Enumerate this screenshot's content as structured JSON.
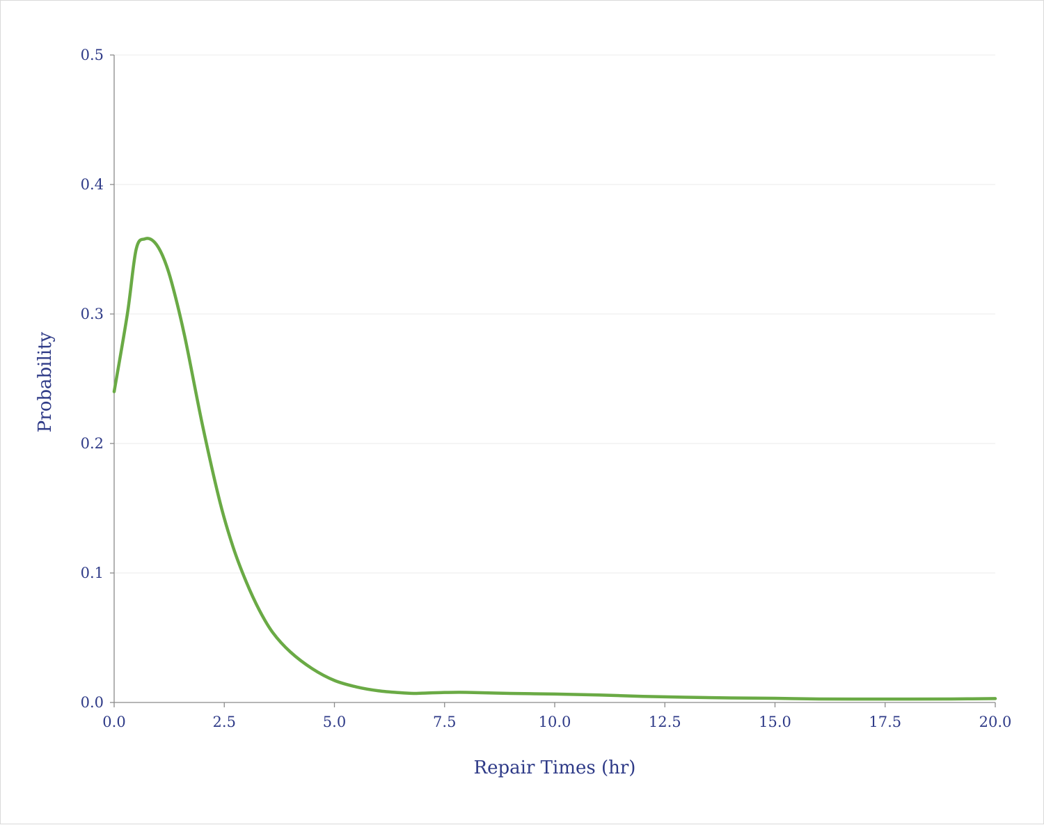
{
  "chart_data": {
    "type": "line",
    "title": "",
    "xlabel": "Repair Times (hr)",
    "ylabel": "Probability",
    "xlim": [
      0,
      20
    ],
    "ylim": [
      0,
      0.5
    ],
    "grid": "horizontal",
    "x_ticks": [
      "0.0",
      "2.5",
      "5.0",
      "7.5",
      "10.0",
      "12.5",
      "15.0",
      "17.5",
      "20.0"
    ],
    "y_ticks": [
      "0.0",
      "0.1",
      "0.2",
      "0.3",
      "0.4",
      "0.5"
    ],
    "line_color": "#6aaa45",
    "text_color": "#2e3a87",
    "series": [
      {
        "x": [
          0.0,
          0.3,
          0.5,
          0.7,
          0.9,
          1.1,
          1.3,
          1.6,
          2.0,
          2.4,
          2.7,
          3.0,
          3.3,
          3.6,
          4.0,
          4.5,
          5.0,
          5.5,
          6.0,
          6.5,
          6.8,
          7.0,
          7.5,
          8.0,
          9.0,
          10.0,
          11.0,
          12.0,
          13.0,
          14.0,
          15.0,
          16.0,
          17.0,
          18.0,
          19.0,
          20.0
        ],
        "y": [
          0.24,
          0.3,
          0.35,
          0.358,
          0.356,
          0.345,
          0.325,
          0.283,
          0.215,
          0.155,
          0.12,
          0.093,
          0.071,
          0.054,
          0.039,
          0.026,
          0.017,
          0.012,
          0.009,
          0.0075,
          0.007,
          0.0072,
          0.0077,
          0.0078,
          0.007,
          0.0065,
          0.0058,
          0.0047,
          0.004,
          0.0035,
          0.0032,
          0.0027,
          0.0026,
          0.0026,
          0.0027,
          0.003
        ]
      }
    ]
  }
}
